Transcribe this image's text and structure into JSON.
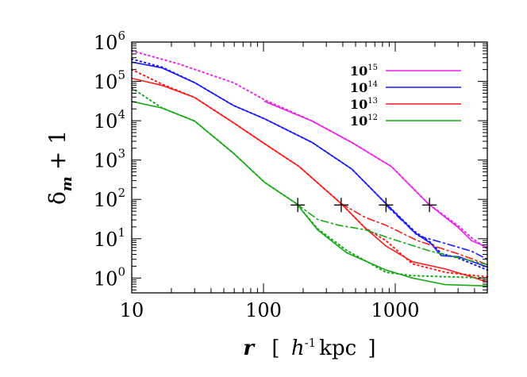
{
  "chart_data": {
    "type": "line",
    "title": "",
    "xlabel": {
      "main": "r",
      "bracket_open": "[",
      "h": "h",
      "h_exp": "-1",
      "unit": "kpc",
      "bracket_close": "]"
    },
    "ylabel": {
      "main": "δ",
      "sub": "m",
      "rest": "+ 1"
    },
    "xscale": "log",
    "yscale": "log",
    "xlim": [
      10,
      5000
    ],
    "ylim": [
      0.42,
      1000000
    ],
    "x_ticks": [
      "10",
      "100",
      "1000"
    ],
    "y_ticks": [
      {
        "base": "10",
        "exp": "0"
      },
      {
        "base": "10",
        "exp": "1"
      },
      {
        "base": "10",
        "exp": "2"
      },
      {
        "base": "10",
        "exp": "3"
      },
      {
        "base": "10",
        "exp": "4"
      },
      {
        "base": "10",
        "exp": "5"
      },
      {
        "base": "10",
        "exp": "6"
      }
    ],
    "grid": false,
    "legend_placement": "top-right",
    "legend": [
      {
        "base": "10",
        "exp": "15",
        "color": "#ee22ee"
      },
      {
        "base": "10",
        "exp": "14",
        "color": "#1a1aff"
      },
      {
        "base": "10",
        "exp": "13",
        "color": "#ff1a1a"
      },
      {
        "base": "10",
        "exp": "12",
        "color": "#18a818"
      }
    ],
    "series": [
      {
        "group": "10^15",
        "style": "solid",
        "color": "#ee22ee",
        "points": [
          [
            102,
            31000
          ],
          [
            234,
            9800
          ],
          [
            468,
            2800
          ],
          [
            933,
            690
          ],
          [
            1778,
            78
          ],
          [
            3020,
            19
          ],
          [
            3802,
            8.9
          ],
          [
            5012,
            6.0
          ]
        ]
      },
      {
        "group": "10^15",
        "style": "dotted",
        "color": "#ee22ee",
        "points": [
          [
            10,
            600000
          ],
          [
            23,
            275000
          ],
          [
            59,
            93000
          ],
          [
            102,
            34000
          ],
          [
            234,
            9800
          ],
          [
            468,
            2800
          ],
          [
            933,
            690
          ],
          [
            1778,
            78
          ],
          [
            3020,
            21
          ],
          [
            3802,
            10.5
          ],
          [
            5012,
            5.5
          ]
        ]
      },
      {
        "group": "10^14",
        "style": "solid",
        "color": "#1a1aff",
        "points": [
          [
            10,
            310000
          ],
          [
            17,
            220000
          ],
          [
            30,
            93000
          ],
          [
            59,
            24500
          ],
          [
            102,
            11200
          ],
          [
            234,
            2800
          ],
          [
            468,
            590
          ],
          [
            851,
            78
          ],
          [
            1413,
            14
          ],
          [
            1862,
            7.6
          ],
          [
            2239,
            3.7
          ],
          [
            3020,
            3.5
          ],
          [
            5012,
            1.9
          ]
        ]
      },
      {
        "group": "10^14",
        "style": "dotted",
        "color": "#1a1aff",
        "points": [
          [
            10,
            370000
          ],
          [
            17,
            230000
          ],
          [
            30,
            93000
          ],
          [
            59,
            24500
          ],
          [
            102,
            11200
          ],
          [
            234,
            2800
          ],
          [
            468,
            590
          ],
          [
            851,
            78
          ],
          [
            1413,
            15
          ],
          [
            1862,
            8
          ],
          [
            2239,
            4.2
          ],
          [
            3020,
            3.2
          ],
          [
            5012,
            1.6
          ]
        ]
      },
      {
        "group": "10^14",
        "style": "dashdot",
        "color": "#1a1aff",
        "points": [
          [
            851,
            72
          ],
          [
            1479,
            12
          ],
          [
            2399,
            7.6
          ],
          [
            3802,
            4.8
          ],
          [
            5012,
            3.0
          ]
        ]
      },
      {
        "group": "10^13",
        "style": "solid",
        "color": "#ff1a1a",
        "points": [
          [
            10,
            120000
          ],
          [
            17,
            79000
          ],
          [
            30,
            39000
          ],
          [
            59,
            8900
          ],
          [
            102,
            2600
          ],
          [
            186,
            690
          ],
          [
            389,
            78
          ],
          [
            589,
            19
          ],
          [
            851,
            6.5
          ],
          [
            1349,
            2.6
          ],
          [
            2399,
            1.7
          ],
          [
            3802,
            1.07
          ],
          [
            5012,
            0.79
          ]
        ]
      },
      {
        "group": "10^13",
        "style": "dotted",
        "color": "#ff1a1a",
        "points": [
          [
            10,
            200000
          ],
          [
            17,
            85000
          ],
          [
            30,
            39000
          ],
          [
            59,
            8900
          ],
          [
            102,
            2600
          ],
          [
            186,
            690
          ],
          [
            389,
            78
          ],
          [
            589,
            19
          ],
          [
            851,
            8.9
          ],
          [
            1349,
            2.3
          ],
          [
            2399,
            1.4
          ],
          [
            5012,
            1.07
          ]
        ]
      },
      {
        "group": "10^13",
        "style": "dashdot",
        "color": "#ff1a1a",
        "points": [
          [
            389,
            78
          ],
          [
            589,
            35
          ],
          [
            851,
            22
          ],
          [
            1479,
            8.9
          ],
          [
            3020,
            4.1
          ],
          [
            5012,
            2.2
          ]
        ]
      },
      {
        "group": "10^12",
        "style": "solid",
        "color": "#18a818",
        "points": [
          [
            10,
            31000
          ],
          [
            17,
            21000
          ],
          [
            30,
            9800
          ],
          [
            59,
            1500
          ],
          [
            102,
            270
          ],
          [
            178,
            78
          ],
          [
            257,
            17
          ],
          [
            427,
            4.4
          ],
          [
            851,
            1.6
          ],
          [
            1349,
            1.0
          ],
          [
            2399,
            0.68
          ],
          [
            5012,
            0.63
          ]
        ]
      },
      {
        "group": "10^12",
        "style": "dotted",
        "color": "#18a818",
        "points": [
          [
            10,
            68000
          ],
          [
            17,
            21000
          ],
          [
            30,
            9800
          ],
          [
            59,
            1500
          ],
          [
            102,
            270
          ],
          [
            178,
            78
          ],
          [
            257,
            18
          ],
          [
            427,
            5.1
          ],
          [
            851,
            1.4
          ],
          [
            1349,
            1.15
          ],
          [
            5012,
            1.0
          ]
        ]
      },
      {
        "group": "10^12",
        "style": "dashdot",
        "color": "#18a818",
        "points": [
          [
            178,
            78
          ],
          [
            257,
            31
          ],
          [
            372,
            22
          ],
          [
            589,
            17
          ],
          [
            933,
            10
          ],
          [
            1862,
            4.8
          ],
          [
            5012,
            2.2
          ]
        ]
      }
    ],
    "markers": {
      "symbol": "plus",
      "color": "#000000",
      "points": [
        [
          182,
          72
        ],
        [
          389,
          72
        ],
        [
          851,
          72
        ],
        [
          1820,
          72
        ]
      ]
    }
  }
}
